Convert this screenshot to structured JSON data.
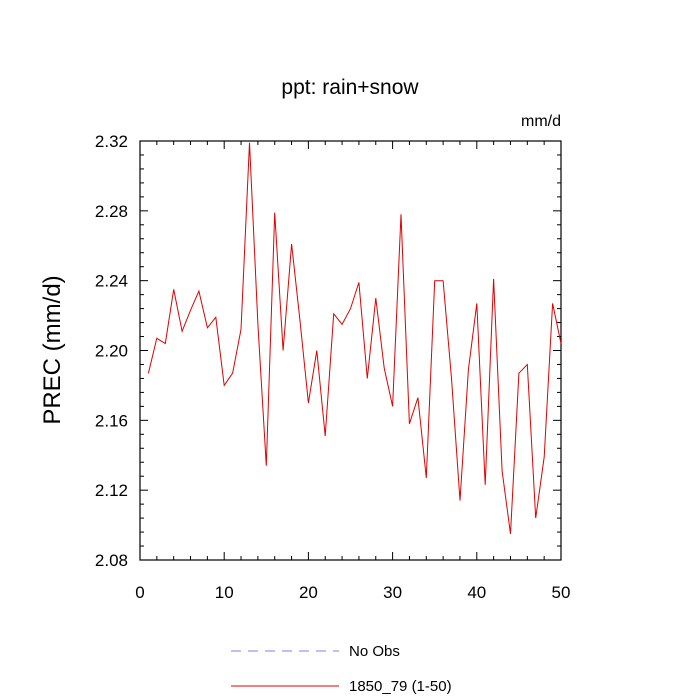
{
  "chart_data": {
    "type": "line",
    "title": "ppt: rain+snow",
    "units_label": "mm/d",
    "xlabel": "",
    "ylabel": "PREC  (mm/d)",
    "xlim": [
      0,
      50
    ],
    "ylim": [
      2.08,
      2.32
    ],
    "xticks": [
      0,
      10,
      20,
      30,
      40,
      50
    ],
    "xtick_labels": [
      "0",
      "10",
      "20",
      "30",
      "40",
      "50"
    ],
    "yticks": [
      2.08,
      2.12,
      2.16,
      2.2,
      2.24,
      2.28,
      2.32
    ],
    "ytick_labels": [
      "2.08",
      "2.12",
      "2.16",
      "2.20",
      "2.24",
      "2.28",
      "2.32"
    ],
    "grid": false,
    "legend_position": "bottom",
    "series": [
      {
        "name": "1850_79 (1-50)",
        "color": "#e00000",
        "dash": "solid",
        "x": [
          1,
          2,
          3,
          4,
          5,
          6,
          7,
          8,
          9,
          10,
          11,
          12,
          13,
          14,
          15,
          16,
          17,
          18,
          19,
          20,
          21,
          22,
          23,
          24,
          25,
          26,
          27,
          28,
          29,
          30,
          31,
          32,
          33,
          34,
          35,
          36,
          37,
          38,
          39,
          40,
          41,
          42,
          43,
          44,
          45,
          46,
          47,
          48,
          49,
          50
        ],
        "values": [
          2.187,
          2.207,
          2.204,
          2.235,
          2.211,
          2.223,
          2.234,
          2.213,
          2.219,
          2.18,
          2.187,
          2.212,
          2.319,
          2.215,
          2.134,
          2.279,
          2.2,
          2.261,
          2.217,
          2.17,
          2.2,
          2.151,
          2.221,
          2.215,
          2.224,
          2.239,
          2.184,
          2.23,
          2.19,
          2.168,
          2.278,
          2.158,
          2.173,
          2.127,
          2.24,
          2.24,
          2.184,
          2.114,
          2.189,
          2.227,
          2.123,
          2.241,
          2.131,
          2.095,
          2.187,
          2.192,
          2.104,
          2.139,
          2.227,
          2.204
        ]
      }
    ],
    "legend": [
      {
        "label": "No Obs",
        "color": "#8080e0",
        "dash": "dashed"
      },
      {
        "label": "1850_79 (1-50)",
        "color": "#e00000",
        "dash": "solid"
      }
    ]
  }
}
